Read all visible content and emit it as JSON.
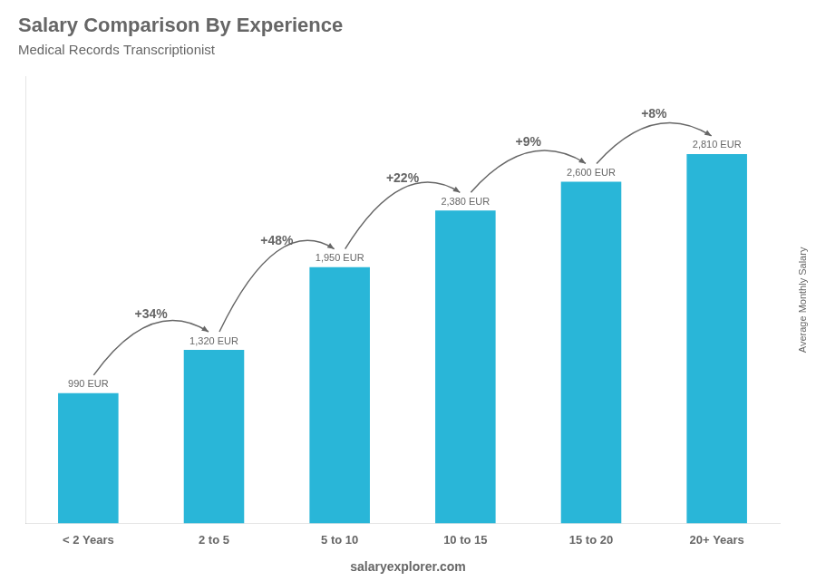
{
  "chart_data": {
    "type": "bar",
    "title": "Salary Comparison By Experience",
    "subtitle": "Medical Records Transcriptionist",
    "categories": [
      "< 2 Years",
      "2 to 5",
      "5 to 10",
      "10 to 15",
      "15 to 20",
      "20+ Years"
    ],
    "values": [
      990,
      1320,
      1950,
      2380,
      2600,
      2810
    ],
    "value_labels": [
      "990 EUR",
      "1,320 EUR",
      "1,950 EUR",
      "2,380 EUR",
      "2,600 EUR",
      "2,810 EUR"
    ],
    "data_labels": true,
    "pct_changes": [
      "+34%",
      "+48%",
      "+22%",
      "+9%",
      "+8%"
    ],
    "side_label": "Average Monthly Salary",
    "footer": "salaryexplorer.com",
    "color": "#29b6d8",
    "ylim": [
      0,
      3400
    ],
    "yticks": [],
    "tick_labels": "x",
    "grid": false
  }
}
